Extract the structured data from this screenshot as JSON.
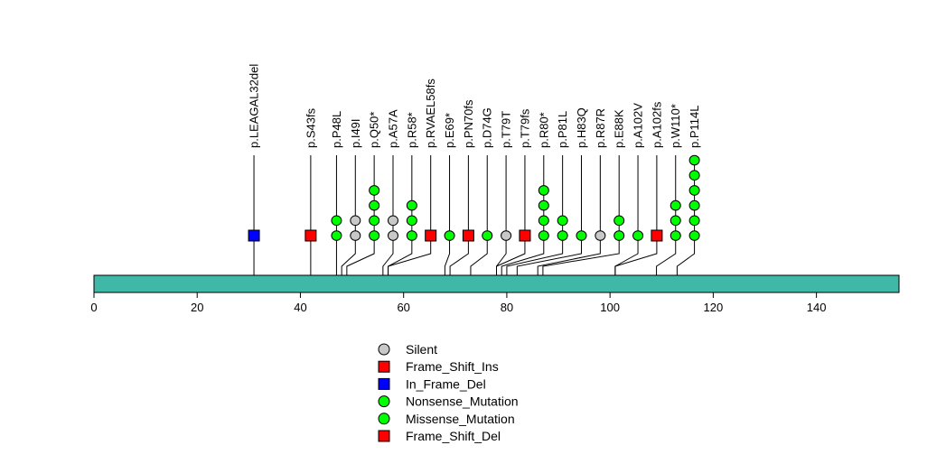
{
  "chart_data": {
    "type": "lollipop",
    "protein_length": 156,
    "x_axis": {
      "range": [
        0,
        156
      ],
      "ticks": [
        0,
        20,
        40,
        60,
        80,
        100,
        120,
        140
      ]
    },
    "colors": {
      "Silent": "#c8c8c8",
      "Frame_Shift_Ins": "#ff0000",
      "In_Frame_Del": "#0000ff",
      "Nonsense_Mutation": "#00ff00",
      "Missense_Mutation": "#00ff00",
      "Frame_Shift_Del": "#ff0000",
      "protein_bar": "#40b8a8"
    },
    "mutations": [
      {
        "label": "p.LEAGAL32del",
        "pos": 31,
        "stack": [
          {
            "type": "In_Frame_Del",
            "count": 1
          }
        ]
      },
      {
        "label": "p.S43fs",
        "pos": 42,
        "stack": [
          {
            "type": "Frame_Shift_Ins",
            "count": 1
          }
        ]
      },
      {
        "label": "p.P48L",
        "pos": 47,
        "stack": [
          {
            "type": "Missense_Mutation",
            "count": 2
          }
        ]
      },
      {
        "label": "p.I49I",
        "pos": 48,
        "stack": [
          {
            "type": "Silent",
            "count": 2
          }
        ]
      },
      {
        "label": "p.Q50*",
        "pos": 49,
        "stack": [
          {
            "type": "Nonsense_Mutation",
            "count": 4
          }
        ]
      },
      {
        "label": "p.A57A",
        "pos": 56,
        "stack": [
          {
            "type": "Silent",
            "count": 2
          }
        ]
      },
      {
        "label": "p.R58*",
        "pos": 57,
        "stack": [
          {
            "type": "Nonsense_Mutation",
            "count": 3
          }
        ]
      },
      {
        "label": "p.RVAEL58fs",
        "pos": 57,
        "stack": [
          {
            "type": "Frame_Shift_Del",
            "count": 1
          }
        ]
      },
      {
        "label": "p.E69*",
        "pos": 68,
        "stack": [
          {
            "type": "Nonsense_Mutation",
            "count": 1
          }
        ]
      },
      {
        "label": "p.PN70fs",
        "pos": 69,
        "stack": [
          {
            "type": "Frame_Shift_Ins",
            "count": 1
          }
        ]
      },
      {
        "label": "p.D74G",
        "pos": 73,
        "stack": [
          {
            "type": "Missense_Mutation",
            "count": 1
          }
        ]
      },
      {
        "label": "p.T79T",
        "pos": 78,
        "stack": [
          {
            "type": "Silent",
            "count": 1
          }
        ]
      },
      {
        "label": "p.T79fs",
        "pos": 78,
        "stack": [
          {
            "type": "Frame_Shift_Del",
            "count": 1
          }
        ]
      },
      {
        "label": "p.R80*",
        "pos": 79,
        "stack": [
          {
            "type": "Nonsense_Mutation",
            "count": 4
          }
        ]
      },
      {
        "label": "p.P81L",
        "pos": 80,
        "stack": [
          {
            "type": "Missense_Mutation",
            "count": 2
          }
        ]
      },
      {
        "label": "p.H83Q",
        "pos": 82,
        "stack": [
          {
            "type": "Missense_Mutation",
            "count": 1
          }
        ]
      },
      {
        "label": "p.R87R",
        "pos": 86,
        "stack": [
          {
            "type": "Silent",
            "count": 1
          }
        ]
      },
      {
        "label": "p.E88K",
        "pos": 87,
        "stack": [
          {
            "type": "Missense_Mutation",
            "count": 2
          }
        ]
      },
      {
        "label": "p.A102V",
        "pos": 101,
        "stack": [
          {
            "type": "Missense_Mutation",
            "count": 1
          }
        ]
      },
      {
        "label": "p.A102fs",
        "pos": 101,
        "stack": [
          {
            "type": "Frame_Shift_Del",
            "count": 1
          }
        ]
      },
      {
        "label": "p.W110*",
        "pos": 109,
        "stack": [
          {
            "type": "Nonsense_Mutation",
            "count": 3
          }
        ]
      },
      {
        "label": "p.P114L",
        "pos": 113,
        "stack": [
          {
            "type": "Missense_Mutation",
            "count": 6
          }
        ]
      }
    ],
    "legend": [
      {
        "label": "Silent",
        "shape": "circle",
        "type": "Silent"
      },
      {
        "label": "Frame_Shift_Ins",
        "shape": "square",
        "type": "Frame_Shift_Ins"
      },
      {
        "label": "In_Frame_Del",
        "shape": "square",
        "type": "In_Frame_Del"
      },
      {
        "label": "Nonsense_Mutation",
        "shape": "circle",
        "type": "Nonsense_Mutation"
      },
      {
        "label": "Missense_Mutation",
        "shape": "circle",
        "type": "Missense_Mutation"
      },
      {
        "label": "Frame_Shift_Del",
        "shape": "square",
        "type": "Frame_Shift_Del"
      }
    ]
  }
}
